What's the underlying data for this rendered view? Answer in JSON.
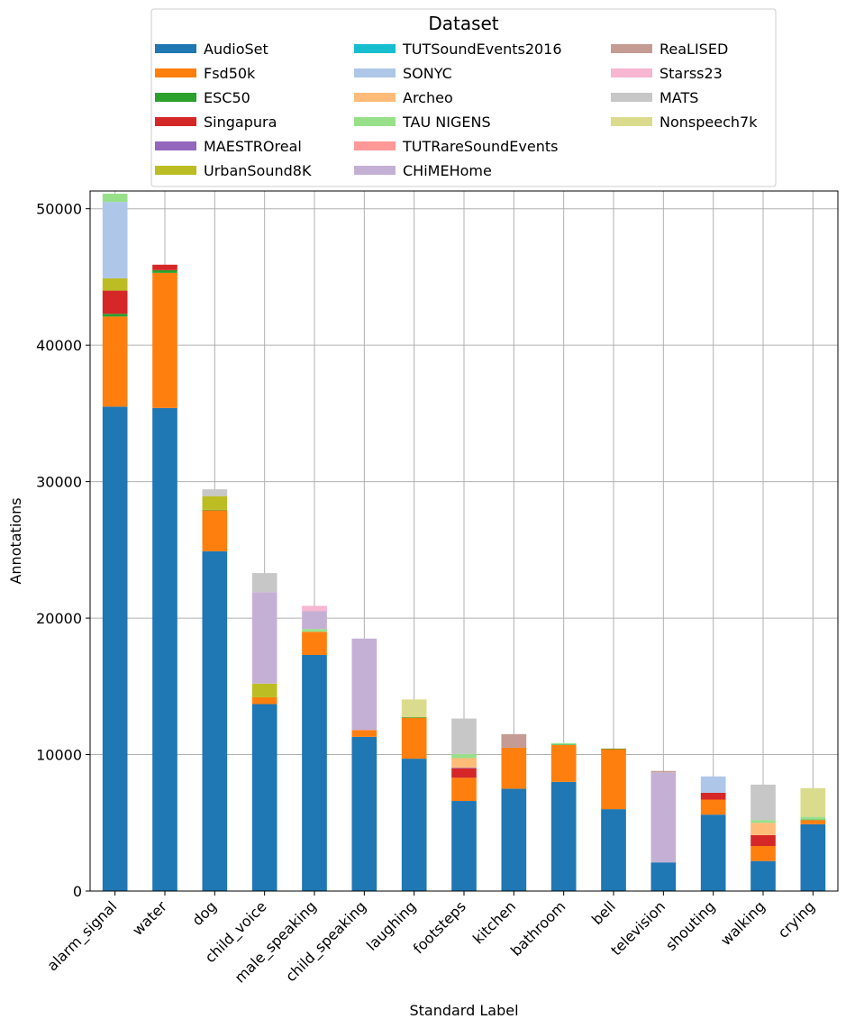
{
  "chart_data": {
    "type": "bar",
    "stacked": true,
    "xlabel": "Standard Label",
    "ylabel": "Annotations",
    "ylim": [
      0,
      51300
    ],
    "yticks": [
      0,
      10000,
      20000,
      30000,
      40000,
      50000
    ],
    "grid": true,
    "legend": {
      "title": "Dataset",
      "placement": "top-center",
      "columns": 3
    },
    "categories": [
      "alarm_signal",
      "water",
      "dog",
      "child_voice",
      "male_speaking",
      "child_speaking",
      "laughing",
      "footsteps",
      "kitchen",
      "bathroom",
      "bell",
      "television",
      "shouting",
      "walking",
      "crying"
    ],
    "series": [
      {
        "name": "AudioSet",
        "color": "#1f77b4",
        "values": [
          35500,
          35400,
          24900,
          13700,
          17300,
          11300,
          9700,
          6600,
          7500,
          8000,
          6000,
          2100,
          5600,
          2200,
          4900
        ]
      },
      {
        "name": "Fsd50k",
        "color": "#ff7f0e",
        "values": [
          6600,
          9900,
          3000,
          500,
          1700,
          500,
          3000,
          1700,
          3000,
          2700,
          4400,
          0,
          1100,
          1100,
          300
        ]
      },
      {
        "name": "ESC50",
        "color": "#2ca02c",
        "values": [
          200,
          200,
          40,
          0,
          0,
          0,
          40,
          0,
          0,
          40,
          40,
          0,
          0,
          0,
          40
        ]
      },
      {
        "name": "Singapura",
        "color": "#d62728",
        "values": [
          1700,
          400,
          0,
          0,
          0,
          0,
          0,
          700,
          0,
          0,
          0,
          0,
          500,
          800,
          0
        ]
      },
      {
        "name": "MAESTROreal",
        "color": "#9467bd",
        "values": [
          0,
          0,
          0,
          0,
          0,
          0,
          0,
          40,
          0,
          0,
          0,
          0,
          0,
          0,
          0
        ]
      },
      {
        "name": "UrbanSound8K",
        "color": "#bcbd22",
        "values": [
          900,
          0,
          1000,
          1000,
          0,
          0,
          0,
          0,
          0,
          0,
          0,
          0,
          0,
          0,
          0
        ]
      },
      {
        "name": "TUTSoundEvents2016",
        "color": "#17becf",
        "values": [
          0,
          0,
          0,
          0,
          0,
          0,
          0,
          0,
          0,
          0,
          0,
          0,
          0,
          0,
          0
        ]
      },
      {
        "name": "SONYC",
        "color": "#aec7e8",
        "values": [
          5600,
          0,
          0,
          0,
          0,
          0,
          0,
          0,
          0,
          0,
          0,
          0,
          1200,
          0,
          0
        ]
      },
      {
        "name": "Archeo",
        "color": "#ffbb78",
        "values": [
          0,
          0,
          0,
          0,
          0,
          0,
          0,
          700,
          0,
          0,
          0,
          0,
          0,
          900,
          0
        ]
      },
      {
        "name": "TAU NIGENS",
        "color": "#98df8a",
        "values": [
          600,
          0,
          0,
          0,
          200,
          0,
          0,
          300,
          0,
          100,
          0,
          0,
          0,
          200,
          200
        ]
      },
      {
        "name": "TUTRareSoundEvents",
        "color": "#ff9896",
        "values": [
          0,
          0,
          0,
          0,
          0,
          0,
          0,
          0,
          0,
          0,
          0,
          0,
          0,
          0,
          0
        ]
      },
      {
        "name": "CHiMEHome",
        "color": "#c5b0d5",
        "values": [
          0,
          0,
          0,
          6700,
          1300,
          6700,
          0,
          0,
          0,
          0,
          0,
          6600,
          0,
          0,
          0
        ]
      },
      {
        "name": "ReaLISED",
        "color": "#c49c94",
        "values": [
          0,
          0,
          0,
          0,
          0,
          0,
          0,
          0,
          1000,
          0,
          0,
          100,
          0,
          0,
          0
        ]
      },
      {
        "name": "Starss23",
        "color": "#f7b6d2",
        "values": [
          0,
          0,
          0,
          0,
          400,
          0,
          0,
          0,
          0,
          0,
          0,
          0,
          0,
          0,
          0
        ]
      },
      {
        "name": "MATS",
        "color": "#c7c7c7",
        "values": [
          0,
          0,
          500,
          1400,
          0,
          0,
          0,
          2600,
          0,
          0,
          0,
          0,
          0,
          2600,
          0
        ]
      },
      {
        "name": "Nonspeech7k",
        "color": "#dbdb8d",
        "values": [
          0,
          0,
          0,
          0,
          0,
          0,
          1300,
          0,
          0,
          0,
          0,
          0,
          0,
          0,
          2100
        ]
      }
    ]
  }
}
